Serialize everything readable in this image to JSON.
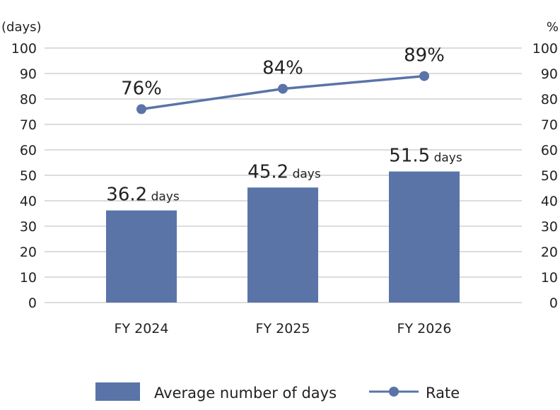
{
  "chart_data": {
    "type": "bar",
    "categories": [
      "FY 2024",
      "FY 2025",
      "FY 2026"
    ],
    "series": [
      {
        "name": "Average number of days",
        "type": "bar",
        "axis": "left",
        "values": [
          36.2,
          45.2,
          51.5
        ],
        "labels": [
          "36.2",
          "45.2",
          "51.5"
        ],
        "label_unit": "days",
        "color": "#5a74a8"
      },
      {
        "name": "Rate",
        "type": "line",
        "axis": "right",
        "values": [
          76,
          84,
          89
        ],
        "labels": [
          "76%",
          "84%",
          "89%"
        ],
        "color": "#5a74a8"
      }
    ],
    "y_left": {
      "label": "(days)",
      "range": [
        0,
        100
      ],
      "ticks": [
        0,
        10,
        20,
        30,
        40,
        50,
        60,
        70,
        80,
        90,
        100
      ]
    },
    "y_right": {
      "label": "%",
      "range": [
        0,
        100
      ],
      "ticks": [
        0,
        10,
        20,
        30,
        40,
        50,
        60,
        70,
        80,
        90,
        100
      ]
    },
    "grid": true,
    "gridline_color": "#c8c8c8",
    "legend_position": "bottom-center"
  }
}
